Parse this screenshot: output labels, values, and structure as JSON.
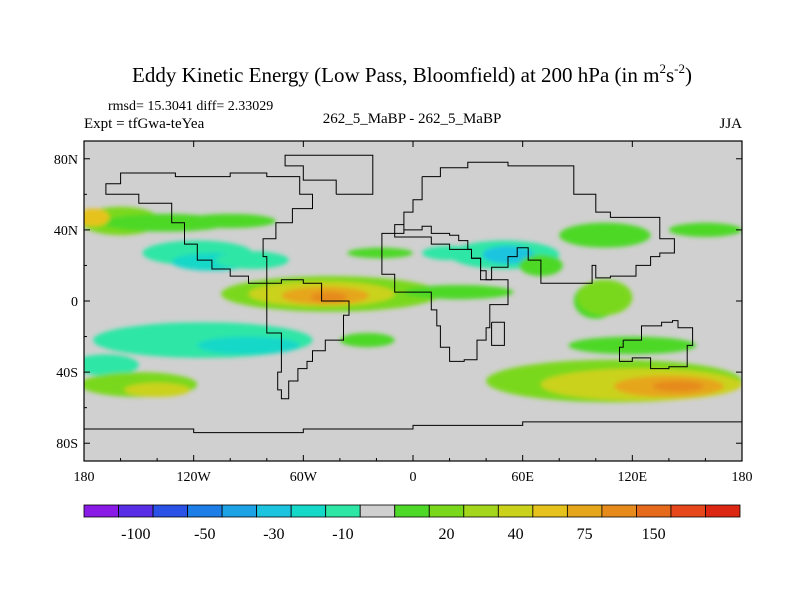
{
  "chart_data": {
    "type": "heatmap",
    "title": "Eddy Kinetic Energy (Low Pass, Bloomfield) at 200 hPa (in m",
    "title_unit_base": "s",
    "title_sup1": "2",
    "title_sup2": "-2",
    "title_close": ")",
    "stats": "rmsd= 15.3041 diff= 2.33029",
    "experiment": "Expt = tfGwa-teYea",
    "subtitle": "262_5_MaBP - 262_5_MaBP",
    "season": "JJA",
    "xlim": [
      -180,
      180
    ],
    "ylim": [
      -90,
      90
    ],
    "x_ticks": [
      {
        "value": -180,
        "label": "180"
      },
      {
        "value": -120,
        "label": "120W"
      },
      {
        "value": -60,
        "label": "60W"
      },
      {
        "value": 0,
        "label": "0"
      },
      {
        "value": 60,
        "label": "60E"
      },
      {
        "value": 120,
        "label": "120E"
      },
      {
        "value": 180,
        "label": "180"
      }
    ],
    "y_ticks": [
      {
        "value": 80,
        "label": "80N"
      },
      {
        "value": 40,
        "label": "40N"
      },
      {
        "value": 0,
        "label": "0"
      },
      {
        "value": -40,
        "label": "40S"
      },
      {
        "value": -80,
        "label": "80S"
      }
    ],
    "colorbar": {
      "colors": [
        "#8a1ae6",
        "#5a2ee6",
        "#2a52e6",
        "#1c7ee6",
        "#1ea2e6",
        "#1cc4e0",
        "#14d8c8",
        "#2ee6a6",
        "#cfcfcf",
        "#4ed828",
        "#7ad81c",
        "#a4d61c",
        "#cad21c",
        "#e6c21c",
        "#e6a61c",
        "#e68a1c",
        "#e66a1c",
        "#e6481c",
        "#dc2812"
      ],
      "labels": [
        "-100",
        "-50",
        "-30",
        "-10",
        "20",
        "40",
        "75",
        "150"
      ],
      "label_positions": [
        1.5,
        3.5,
        5.5,
        7.5,
        10.5,
        12.5,
        14.5,
        16.5
      ]
    },
    "fields": [
      {
        "lon": -160,
        "lat": 45,
        "rx": 22,
        "ry": 8,
        "level": 10
      },
      {
        "lon": -135,
        "lat": 44,
        "rx": 35,
        "ry": 5,
        "level": 9
      },
      {
        "lon": -175,
        "lat": 47,
        "rx": 9,
        "ry": 5,
        "level": 13
      },
      {
        "lon": -100,
        "lat": 45,
        "rx": 25,
        "ry": 4,
        "level": 9
      },
      {
        "lon": -118,
        "lat": 27,
        "rx": 30,
        "ry": 7,
        "level": 7
      },
      {
        "lon": -110,
        "lat": 22,
        "rx": 22,
        "ry": 5,
        "level": 6
      },
      {
        "lon": -88,
        "lat": 23,
        "rx": 20,
        "ry": 5,
        "level": 7
      },
      {
        "lon": -45,
        "lat": 4,
        "rx": 60,
        "ry": 10,
        "level": 10
      },
      {
        "lon": -50,
        "lat": 4,
        "rx": 40,
        "ry": 7,
        "level": 12
      },
      {
        "lon": -48,
        "lat": 3,
        "rx": 24,
        "ry": 5,
        "level": 14
      },
      {
        "lon": -46,
        "lat": 2,
        "rx": 10,
        "ry": 3,
        "level": 15
      },
      {
        "lon": 25,
        "lat": 5,
        "rx": 30,
        "ry": 4,
        "level": 9
      },
      {
        "lon": -18,
        "lat": 27,
        "rx": 18,
        "ry": 3,
        "level": 9
      },
      {
        "lon": 20,
        "lat": 27,
        "rx": 15,
        "ry": 4,
        "level": 7
      },
      {
        "lon": 50,
        "lat": 26,
        "rx": 30,
        "ry": 8,
        "level": 7
      },
      {
        "lon": 52,
        "lat": 26,
        "rx": 14,
        "ry": 5,
        "level": 5
      },
      {
        "lon": 70,
        "lat": 20,
        "rx": 12,
        "ry": 6,
        "level": 9
      },
      {
        "lon": 105,
        "lat": 37,
        "rx": 25,
        "ry": 7,
        "level": 9
      },
      {
        "lon": 160,
        "lat": 40,
        "rx": 20,
        "ry": 4,
        "level": 9
      },
      {
        "lon": 100,
        "lat": 0,
        "rx": 12,
        "ry": 10,
        "level": 9
      },
      {
        "lon": 105,
        "lat": 2,
        "rx": 15,
        "ry": 10,
        "level": 10
      },
      {
        "lon": -115,
        "lat": -22,
        "rx": 60,
        "ry": 10,
        "level": 7
      },
      {
        "lon": -90,
        "lat": -25,
        "rx": 28,
        "ry": 5,
        "level": 6
      },
      {
        "lon": -168,
        "lat": -36,
        "rx": 18,
        "ry": 6,
        "level": 7
      },
      {
        "lon": -150,
        "lat": -47,
        "rx": 32,
        "ry": 7,
        "level": 10
      },
      {
        "lon": -140,
        "lat": -50,
        "rx": 18,
        "ry": 4,
        "level": 12
      },
      {
        "lon": -25,
        "lat": -22,
        "rx": 15,
        "ry": 4,
        "level": 9
      },
      {
        "lon": 110,
        "lat": -45,
        "rx": 70,
        "ry": 12,
        "level": 10
      },
      {
        "lon": 125,
        "lat": -47,
        "rx": 55,
        "ry": 9,
        "level": 12
      },
      {
        "lon": 140,
        "lat": -48,
        "rx": 30,
        "ry": 6,
        "level": 14
      },
      {
        "lon": 145,
        "lat": -48,
        "rx": 14,
        "ry": 3,
        "level": 15
      },
      {
        "lon": 120,
        "lat": -25,
        "rx": 35,
        "ry": 5,
        "level": 9
      }
    ],
    "outlines": [
      [
        [
          5,
          70
        ],
        [
          15,
          75
        ],
        [
          30,
          78
        ],
        [
          52,
          76
        ],
        [
          88,
          76
        ],
        [
          88,
          60
        ],
        [
          100,
          50
        ],
        [
          108,
          47
        ],
        [
          135,
          35
        ],
        [
          143,
          27
        ],
        [
          135,
          25
        ],
        [
          130,
          20
        ],
        [
          122,
          14
        ],
        [
          108,
          13
        ],
        [
          100,
          20
        ],
        [
          98,
          10
        ],
        [
          80,
          10
        ],
        [
          70,
          23
        ],
        [
          63,
          30
        ],
        [
          57,
          25
        ],
        [
          52,
          19
        ],
        [
          43,
          12
        ],
        [
          40,
          17
        ],
        [
          37,
          24
        ],
        [
          32,
          29
        ],
        [
          30,
          34
        ],
        [
          25,
          37
        ],
        [
          20,
          38
        ],
        [
          10,
          42
        ],
        [
          5,
          40
        ],
        [
          -5,
          43
        ],
        [
          -10,
          38
        ],
        [
          -5,
          50
        ],
        [
          0,
          57
        ],
        [
          5,
          70
        ]
      ],
      [
        [
          -10,
          38
        ],
        [
          -17,
          21
        ],
        [
          -17,
          15
        ],
        [
          -10,
          5
        ],
        [
          3,
          5
        ],
        [
          10,
          0
        ],
        [
          10,
          -5
        ],
        [
          13,
          -14
        ],
        [
          15,
          -26
        ],
        [
          20,
          -34
        ],
        [
          28,
          -33
        ],
        [
          35,
          -22
        ],
        [
          40,
          -15
        ],
        [
          42,
          -2
        ],
        [
          52,
          12
        ],
        [
          43,
          12
        ],
        [
          37,
          24
        ],
        [
          32,
          29
        ],
        [
          20,
          32
        ],
        [
          10,
          36
        ],
        [
          -10,
          38
        ]
      ],
      [
        [
          -80,
          10
        ],
        [
          -72,
          12
        ],
        [
          -60,
          10
        ],
        [
          -50,
          0
        ],
        [
          -35,
          -8
        ],
        [
          -38,
          -22
        ],
        [
          -48,
          -28
        ],
        [
          -55,
          -34
        ],
        [
          -58,
          -38
        ],
        [
          -63,
          -45
        ],
        [
          -68,
          -55
        ],
        [
          -72,
          -50
        ],
        [
          -74,
          -40
        ],
        [
          -72,
          -18
        ],
        [
          -80,
          -5
        ],
        [
          -80,
          10
        ]
      ],
      [
        [
          -42,
          60
        ],
        [
          -22,
          70
        ],
        [
          -22,
          82
        ],
        [
          -55,
          82
        ],
        [
          -70,
          76
        ],
        [
          -60,
          68
        ],
        [
          -42,
          60
        ]
      ],
      [
        [
          -80,
          10
        ],
        [
          -90,
          14
        ],
        [
          -100,
          18
        ],
        [
          -110,
          23
        ],
        [
          -118,
          32
        ],
        [
          -125,
          44
        ],
        [
          -132,
          55
        ],
        [
          -150,
          60
        ],
        [
          -168,
          66
        ],
        [
          -160,
          72
        ],
        [
          -130,
          70
        ],
        [
          -100,
          72
        ],
        [
          -80,
          70
        ],
        [
          -62,
          60
        ],
        [
          -55,
          52
        ],
        [
          -66,
          44
        ],
        [
          -75,
          35
        ],
        [
          -82,
          25
        ],
        [
          -80,
          10
        ]
      ],
      [
        [
          115,
          -22
        ],
        [
          125,
          -14
        ],
        [
          136,
          -12
        ],
        [
          142,
          -11
        ],
        [
          145,
          -15
        ],
        [
          153,
          -25
        ],
        [
          150,
          -37
        ],
        [
          140,
          -38
        ],
        [
          130,
          -32
        ],
        [
          120,
          -34
        ],
        [
          115,
          -34
        ],
        [
          113,
          -26
        ],
        [
          115,
          -22
        ]
      ],
      [
        [
          43,
          -12
        ],
        [
          50,
          -15
        ],
        [
          50,
          -25
        ],
        [
          45,
          -25
        ],
        [
          43,
          -12
        ]
      ],
      [
        [
          -180,
          -72
        ],
        [
          -120,
          -74
        ],
        [
          -60,
          -72
        ],
        [
          0,
          -70
        ],
        [
          60,
          -68
        ],
        [
          120,
          -68
        ],
        [
          180,
          -70
        ]
      ]
    ]
  }
}
